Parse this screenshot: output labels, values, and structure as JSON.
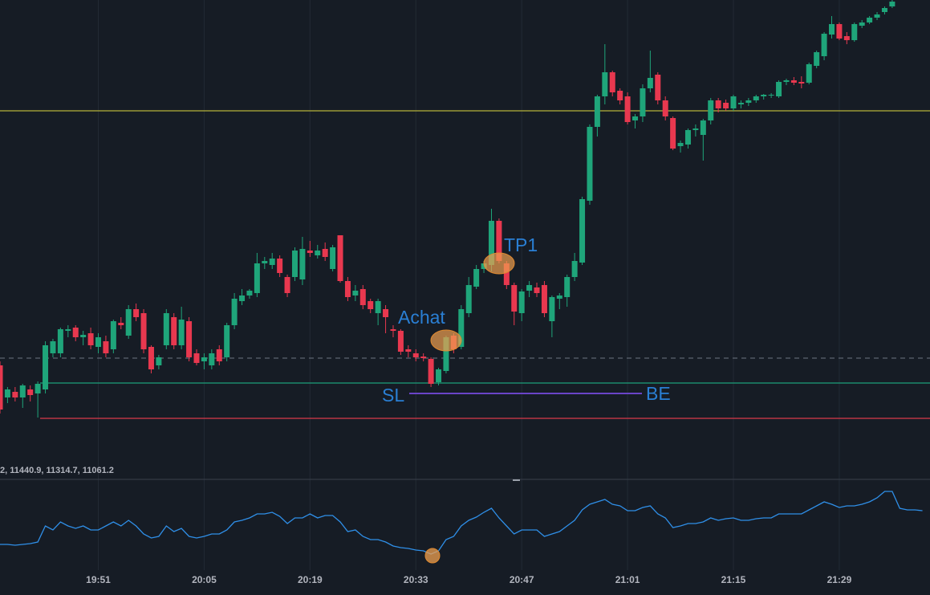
{
  "chart_data": {
    "type": "candlestick",
    "up_color": "#1fa57a",
    "down_color": "#e8384f",
    "xlim": [
      0,
      123
    ],
    "ylim": [
      10,
      600
    ],
    "xticks": [
      {
        "value": 13,
        "label": "19:51"
      },
      {
        "value": 27,
        "label": "20:05"
      },
      {
        "value": 41,
        "label": "20:19"
      },
      {
        "value": 55,
        "label": "20:33"
      },
      {
        "value": 69,
        "label": "20:47"
      },
      {
        "value": 83,
        "label": "21:01"
      },
      {
        "value": 97,
        "label": "21:15"
      },
      {
        "value": 111,
        "label": "21:29"
      }
    ],
    "grid": true,
    "candles": [
      [
        145,
        150,
        85,
        90
      ],
      [
        105,
        118,
        98,
        115
      ],
      [
        112,
        118,
        100,
        105
      ],
      [
        105,
        122,
        92,
        120
      ],
      [
        115,
        120,
        100,
        108
      ],
      [
        110,
        125,
        80,
        122
      ],
      [
        115,
        175,
        110,
        170
      ],
      [
        160,
        178,
        155,
        175
      ],
      [
        160,
        192,
        155,
        190
      ],
      [
        188,
        195,
        180,
        190
      ],
      [
        192,
        195,
        175,
        180
      ],
      [
        180,
        188,
        170,
        183
      ],
      [
        185,
        192,
        165,
        170
      ],
      [
        168,
        185,
        160,
        180
      ],
      [
        175,
        182,
        155,
        160
      ],
      [
        165,
        202,
        160,
        200
      ],
      [
        198,
        205,
        190,
        195
      ],
      [
        182,
        220,
        178,
        215
      ],
      [
        215,
        222,
        200,
        205
      ],
      [
        210,
        215,
        160,
        165
      ],
      [
        168,
        170,
        135,
        140
      ],
      [
        145,
        158,
        140,
        155
      ],
      [
        170,
        215,
        165,
        210
      ],
      [
        205,
        210,
        165,
        170
      ],
      [
        170,
        218,
        165,
        202
      ],
      [
        200,
        205,
        150,
        155
      ],
      [
        160,
        165,
        145,
        148
      ],
      [
        150,
        160,
        140,
        155
      ],
      [
        145,
        165,
        140,
        160
      ],
      [
        165,
        170,
        145,
        150
      ],
      [
        155,
        198,
        150,
        195
      ],
      [
        195,
        235,
        190,
        228
      ],
      [
        225,
        240,
        220,
        232
      ],
      [
        232,
        240,
        228,
        238
      ],
      [
        235,
        285,
        230,
        272
      ],
      [
        272,
        280,
        265,
        275
      ],
      [
        270,
        285,
        265,
        278
      ],
      [
        278,
        282,
        255,
        260
      ],
      [
        255,
        258,
        230,
        235
      ],
      [
        255,
        292,
        250,
        288
      ],
      [
        252,
        305,
        245,
        290
      ],
      [
        288,
        300,
        280,
        285
      ],
      [
        282,
        295,
        278,
        288
      ],
      [
        290,
        298,
        275,
        280
      ],
      [
        265,
        295,
        262,
        292
      ],
      [
        307,
        307,
        248,
        250
      ],
      [
        250,
        255,
        225,
        230
      ],
      [
        232,
        245,
        225,
        238
      ],
      [
        240,
        245,
        215,
        220
      ],
      [
        225,
        228,
        210,
        215
      ],
      [
        210,
        228,
        195,
        225
      ],
      [
        215,
        220,
        185,
        205
      ],
      [
        190,
        195,
        180,
        188
      ],
      [
        188,
        190,
        158,
        162
      ],
      [
        165,
        170,
        155,
        162
      ],
      [
        160,
        165,
        150,
        155
      ],
      [
        156,
        160,
        150,
        154
      ],
      [
        153,
        155,
        118,
        122
      ],
      [
        124,
        142,
        120,
        140
      ],
      [
        138,
        182,
        135,
        180
      ],
      [
        182,
        185,
        160,
        165
      ],
      [
        168,
        220,
        165,
        215
      ],
      [
        210,
        255,
        205,
        245
      ],
      [
        243,
        270,
        240,
        265
      ],
      [
        265,
        275,
        260,
        272
      ],
      [
        270,
        340,
        262,
        325
      ],
      [
        325,
        328,
        272,
        275
      ],
      [
        272,
        275,
        240,
        245
      ],
      [
        245,
        248,
        195,
        212
      ],
      [
        210,
        240,
        200,
        237
      ],
      [
        238,
        250,
        230,
        245
      ],
      [
        242,
        248,
        230,
        235
      ],
      [
        245,
        250,
        205,
        210
      ],
      [
        200,
        232,
        180,
        230
      ],
      [
        228,
        235,
        215,
        232
      ],
      [
        230,
        258,
        218,
        255
      ],
      [
        255,
        285,
        250,
        275
      ],
      [
        273,
        355,
        270,
        352
      ],
      [
        350,
        445,
        345,
        442
      ],
      [
        442,
        482,
        430,
        480
      ],
      [
        480,
        545,
        470,
        510
      ],
      [
        510,
        512,
        480,
        485
      ],
      [
        487,
        490,
        470,
        475
      ],
      [
        480,
        485,
        445,
        448
      ],
      [
        450,
        458,
        440,
        455
      ],
      [
        455,
        495,
        448,
        490
      ],
      [
        490,
        537,
        485,
        503
      ],
      [
        507,
        510,
        470,
        475
      ],
      [
        475,
        480,
        450,
        455
      ],
      [
        453,
        455,
        413,
        415
      ],
      [
        418,
        425,
        410,
        422
      ],
      [
        420,
        440,
        415,
        438
      ],
      [
        438,
        445,
        430,
        440
      ],
      [
        432,
        452,
        400,
        450
      ],
      [
        450,
        478,
        445,
        475
      ],
      [
        475,
        478,
        460,
        465
      ],
      [
        472,
        476,
        462,
        465
      ],
      [
        465,
        482,
        462,
        480
      ],
      [
        470,
        475,
        465,
        472
      ],
      [
        472,
        478,
        468,
        475
      ],
      [
        475,
        482,
        472,
        480
      ],
      [
        480,
        483,
        476,
        482
      ],
      [
        481,
        484,
        478,
        482
      ],
      [
        480,
        500,
        478,
        498
      ],
      [
        498,
        502,
        494,
        500
      ],
      [
        500,
        504,
        494,
        497
      ],
      [
        498,
        505,
        490,
        496
      ],
      [
        497,
        522,
        495,
        520
      ],
      [
        518,
        537,
        515,
        535
      ],
      [
        530,
        560,
        525,
        558
      ],
      [
        557,
        580,
        552,
        570
      ],
      [
        570,
        572,
        550,
        552
      ],
      [
        555,
        560,
        545,
        550
      ],
      [
        550,
        572,
        548,
        570
      ],
      [
        568,
        575,
        565,
        572
      ],
      [
        572,
        580,
        570,
        578
      ],
      [
        578,
        585,
        575,
        582
      ],
      [
        585,
        592,
        582,
        590
      ],
      [
        592,
        600,
        590,
        598
      ]
    ],
    "levels": [
      {
        "value": 462,
        "color": "#b5b23a",
        "dashed": false
      },
      {
        "value": 154,
        "color": "#5d6470",
        "dashed": true
      },
      {
        "value": 123,
        "color": "#1e9e7a",
        "dashed": false
      },
      {
        "value": 79,
        "color": "#d9384a",
        "dashed": false
      },
      {
        "value": 110,
        "color": "#6a44c8",
        "dashed": false
      }
    ],
    "annotations": [
      "Achat",
      "TP1",
      "SL",
      "BE"
    ],
    "indicator": {
      "legend": "2, 11440.9, 11314.7, 11061.2",
      "color": "#2f8fe8",
      "ylim": [
        0,
        112
      ],
      "values": [
        32,
        32,
        31,
        32,
        33,
        35,
        55,
        50,
        60,
        55,
        52,
        55,
        50,
        50,
        55,
        60,
        55,
        62,
        55,
        45,
        40,
        42,
        55,
        48,
        52,
        42,
        40,
        42,
        45,
        45,
        50,
        60,
        62,
        65,
        70,
        70,
        72,
        67,
        58,
        65,
        65,
        70,
        65,
        68,
        68,
        60,
        48,
        50,
        42,
        38,
        38,
        35,
        30,
        28,
        27,
        25,
        24,
        20,
        24,
        38,
        42,
        55,
        62,
        66,
        72,
        77,
        65,
        55,
        45,
        50,
        50,
        50,
        42,
        45,
        48,
        55,
        62,
        75,
        82,
        85,
        88,
        82,
        80,
        74,
        74,
        78,
        80,
        70,
        65,
        53,
        55,
        58,
        58,
        60,
        65,
        62,
        64,
        65,
        62,
        62,
        64,
        65,
        65,
        70,
        70,
        70,
        70,
        75,
        80,
        85,
        82,
        78,
        80,
        80,
        82,
        85,
        90,
        98,
        98,
        77,
        75,
        75,
        74
      ]
    }
  }
}
